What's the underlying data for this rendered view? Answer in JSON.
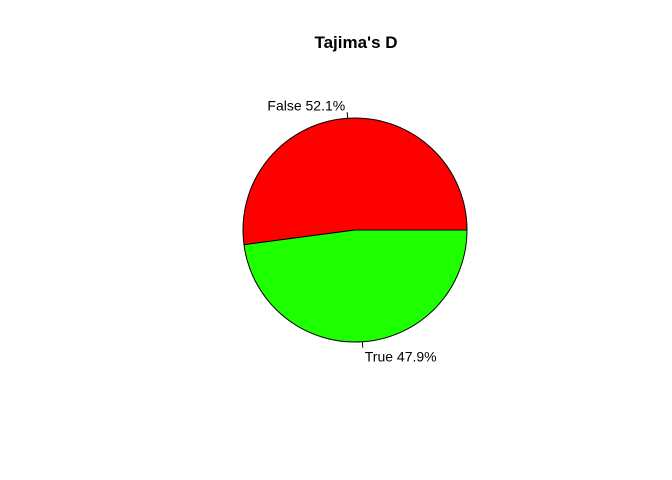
{
  "chart_data": {
    "type": "pie",
    "title": "Tajima's D",
    "slices": [
      {
        "label": "False 52.1%",
        "category": "False",
        "value": 52.1,
        "color": "#ff0000"
      },
      {
        "label": "True 47.9%",
        "category": "True",
        "value": 47.9,
        "color": "#1eff00"
      }
    ],
    "start_angle_deg": 0,
    "direction": "counterclockwise",
    "legend": "none"
  }
}
